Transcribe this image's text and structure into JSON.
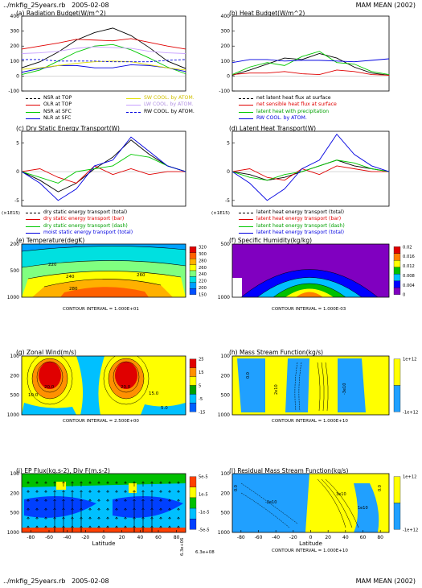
{
  "header": {
    "script": "../mkfig_25years.rb",
    "date": "2005-02-08",
    "season": "MAM MEAN (2002)"
  },
  "footer": {
    "script": "../mkfig_25years.rb",
    "date": "2005-02-08",
    "season": "MAM MEAN (2002)"
  },
  "scale_label": "(×1E15)",
  "contour_intervals": {
    "e": "CONTOUR INTERVAL = 1.000E+01",
    "f": "CONTOUR INTERVAL = 1.000E-03",
    "g": "CONTOUR INTERVAL = 2.500E+00",
    "h": "CONTOUR INTERVAL = 1.000E+10",
    "l": "CONTOUR INTERVAL = 1.000E+10"
  },
  "vector_refs": [
    "6.3e+06",
    "6.3e+08"
  ],
  "colors": {
    "black": "#000000",
    "red": "#e00000",
    "green": "#00c800",
    "blue": "#0000e0",
    "yellow": "#e0e000",
    "violet": "#c8a0ff",
    "gray": "#808080"
  },
  "chart_data": [
    {
      "id": "a",
      "type": "line",
      "title": "(a) Radiation Budget(W/m^2)",
      "xlim": [
        -90,
        90
      ],
      "ylim": [
        -100,
        400
      ],
      "yticks": [
        -100,
        0,
        100,
        200,
        300,
        400
      ],
      "x": [
        -90,
        -70,
        -50,
        -30,
        -10,
        10,
        30,
        50,
        70,
        90
      ],
      "series": [
        {
          "name": "NSR at TOP",
          "color": "black",
          "values": [
            55,
            95,
            160,
            240,
            290,
            320,
            270,
            190,
            100,
            50
          ]
        },
        {
          "name": "OLR at TOP",
          "color": "red",
          "values": [
            180,
            200,
            220,
            245,
            240,
            235,
            250,
            225,
            200,
            180
          ]
        },
        {
          "name": "NSR at SFC",
          "color": "green",
          "values": [
            10,
            40,
            100,
            160,
            200,
            210,
            175,
            120,
            60,
            15
          ]
        },
        {
          "name": "NLR at SFC",
          "color": "blue",
          "values": [
            25,
            50,
            70,
            70,
            55,
            55,
            75,
            70,
            55,
            30
          ]
        },
        {
          "name": "SW COOL. by ATOM.",
          "color": "yellow",
          "values": [
            45,
            55,
            70,
            85,
            95,
            100,
            95,
            75,
            55,
            40
          ]
        },
        {
          "name": "LW COOL. by ATOM.",
          "color": "violet",
          "values": [
            150,
            155,
            165,
            185,
            195,
            190,
            185,
            165,
            155,
            150
          ]
        },
        {
          "name": "RW COOL. by ATOM.",
          "color": "blue",
          "dashed": true,
          "values": [
            110,
            110,
            100,
            100,
            100,
            95,
            95,
            95,
            105,
            110
          ]
        }
      ]
    },
    {
      "id": "b",
      "type": "line",
      "title": "(b) Heat Budget(W/m^2)",
      "xlim": [
        -90,
        90
      ],
      "ylim": [
        -100,
        400
      ],
      "yticks": [
        -100,
        0,
        100,
        200,
        300,
        400
      ],
      "x": [
        -90,
        -70,
        -50,
        -30,
        -10,
        10,
        30,
        50,
        70,
        90
      ],
      "series": [
        {
          "name": "net latent heat flux at surface",
          "color": "black",
          "values": [
            5,
            40,
            80,
            120,
            110,
            150,
            120,
            60,
            20,
            5
          ]
        },
        {
          "name": "net sensible heat flux at surface",
          "color": "red",
          "values": [
            10,
            20,
            20,
            30,
            15,
            10,
            40,
            30,
            10,
            5
          ]
        },
        {
          "name": "latent heat with precipitation",
          "color": "green",
          "values": [
            10,
            60,
            90,
            70,
            130,
            165,
            90,
            80,
            30,
            10
          ]
        },
        {
          "name": "RW COOL. by ATOM.",
          "color": "blue",
          "values": [
            90,
            110,
            110,
            100,
            105,
            105,
            100,
            95,
            105,
            115
          ]
        }
      ]
    },
    {
      "id": "c",
      "type": "line",
      "title": "(c) Dry Static Energy Transport(W)",
      "xlim": [
        -90,
        90
      ],
      "ylim": [
        -6,
        7
      ],
      "yticks": [
        -5,
        0,
        5
      ],
      "x": [
        -90,
        -70,
        -50,
        -30,
        -10,
        10,
        30,
        50,
        70,
        90
      ],
      "series": [
        {
          "name": "dry static energy transport (total)",
          "color": "black",
          "values": [
            0,
            -1.5,
            -3.5,
            -2,
            0.5,
            2.5,
            5.5,
            3,
            1,
            0
          ]
        },
        {
          "name": "dry static energy transport (bar)",
          "color": "red",
          "values": [
            0,
            0.5,
            -1,
            -2,
            1,
            -0.5,
            0.5,
            -0.5,
            0,
            0
          ]
        },
        {
          "name": "dry static energy transport (dash)",
          "color": "green",
          "values": [
            0,
            -1,
            -2,
            0,
            0.5,
            1,
            3,
            2.5,
            1,
            0
          ]
        },
        {
          "name": "moist static energy transport (total)",
          "color": "blue",
          "values": [
            0,
            -2,
            -5,
            -3,
            1,
            2,
            6,
            3.5,
            1,
            0
          ]
        }
      ]
    },
    {
      "id": "d",
      "type": "line",
      "title": "(d) Latent Heat Transport(W)",
      "xlim": [
        -90,
        90
      ],
      "ylim": [
        -6,
        7
      ],
      "yticks": [
        -5,
        0,
        5
      ],
      "x": [
        -90,
        -70,
        -50,
        -30,
        -10,
        10,
        30,
        50,
        70,
        90
      ],
      "series": [
        {
          "name": "latent heat energy transport (total)",
          "color": "black",
          "values": [
            0,
            -0.5,
            -1.5,
            -1,
            0,
            1,
            2,
            1,
            0.5,
            0
          ]
        },
        {
          "name": "latent heat energy transport (bar)",
          "color": "red",
          "values": [
            0,
            0.5,
            -1,
            -1.5,
            0.5,
            -0.5,
            1,
            0.5,
            0,
            0
          ]
        },
        {
          "name": "latent heat energy transport (dash)",
          "color": "green",
          "values": [
            0,
            -1,
            -1.5,
            -0.5,
            0,
            1,
            2,
            1.5,
            0.5,
            0
          ]
        },
        {
          "name": "latent heat energy transport (total)",
          "color": "blue",
          "values": [
            0,
            -2,
            -5,
            -3,
            0.5,
            2,
            6.5,
            3,
            1,
            0
          ]
        }
      ]
    },
    {
      "id": "e",
      "type": "heatmap",
      "title": "(e) Temperature(degK)",
      "yticks": [
        200,
        500,
        1000
      ],
      "colorbar": [
        "320",
        "300",
        "280",
        "260",
        "240",
        "220",
        "200",
        "150"
      ],
      "colors": [
        "#e00000",
        "#ff6000",
        "#ffb000",
        "#ffff00",
        "#80ff80",
        "#00e0e0",
        "#00a0ff",
        "#0050ff"
      ],
      "contour_labels": [
        "220",
        "240",
        "260",
        "280"
      ]
    },
    {
      "id": "f",
      "type": "heatmap",
      "title": "(f) Specific Humidity(kg/kg)",
      "yticks": [
        500,
        1000
      ],
      "colorbar": [
        "0.02",
        "0.016",
        "0.012",
        "0.008",
        "0.004",
        "0"
      ],
      "colors": [
        "#e00000",
        "#ff8000",
        "#ffff00",
        "#00c000",
        "#00c0ff",
        "#0000ff",
        "#8000c0"
      ]
    },
    {
      "id": "g",
      "type": "heatmap",
      "title": "(g) Zonal Wind(m/s)",
      "yticks": [
        100,
        200,
        500,
        1000
      ],
      "colorbar": [
        "25",
        "15",
        "5",
        "-5",
        "-15"
      ],
      "colors": [
        "#e00000",
        "#ff9000",
        "#ffff00",
        "#00a000",
        "#00c0ff",
        "#0060ff"
      ],
      "contour_labels": [
        "20.0",
        "20.0",
        "15.0",
        "10.0",
        "5.0"
      ]
    },
    {
      "id": "h",
      "type": "heatmap",
      "title": "(h) Mass Stream Function(kg/s)",
      "yticks": [
        100,
        200,
        500,
        1000
      ],
      "colorbar": [
        "1e+12",
        "-1e+12"
      ],
      "colors": [
        "#ffff00",
        "#20a0ff"
      ],
      "contour_labels": [
        "0.0",
        "2e10",
        "-3e10"
      ]
    },
    {
      "id": "i",
      "type": "heatmap",
      "title": "(i) EP Flux(kg.s-2), Div F(m.s-2)",
      "yticks": [
        100,
        200,
        500,
        1000
      ],
      "xticks": [
        "-80",
        "-60",
        "-40",
        "-20",
        "0",
        "20",
        "40",
        "60",
        "80"
      ],
      "xlabel": "Latitude",
      "colorbar": [
        "5e-5",
        "1e-5",
        "-1e-5",
        "-5e-5"
      ],
      "colors": [
        "#ff4000",
        "#ffff00",
        "#00c000",
        "#00c0ff",
        "#0040ff"
      ]
    },
    {
      "id": "l",
      "type": "heatmap",
      "title": "(l) Residual Mass Stream Function(kg/s)",
      "yticks": [
        100,
        200,
        500,
        1000
      ],
      "xticks": [
        "-80",
        "-60",
        "-40",
        "-20",
        "0",
        "20",
        "40",
        "60",
        "80"
      ],
      "xlabel": "Latitude",
      "colorbar": [
        "1e+12",
        "-1e+12"
      ],
      "colors": [
        "#ffff00",
        "#20a0ff"
      ],
      "contour_labels": [
        "0.0",
        "-2e10",
        "3e10",
        "1e10"
      ]
    }
  ]
}
